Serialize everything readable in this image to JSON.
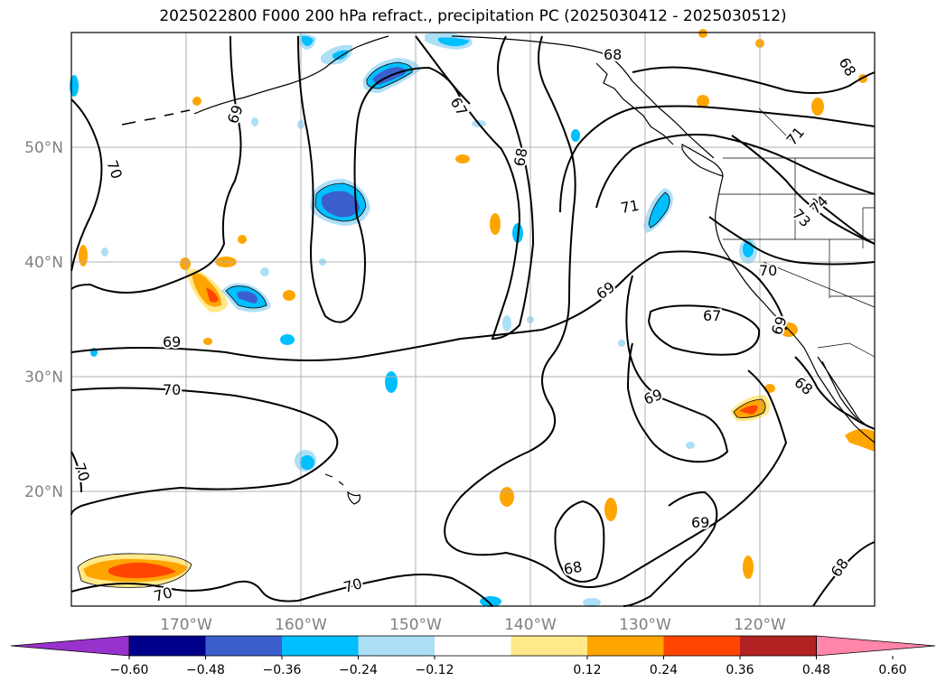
{
  "title": "2025022800 F000 200 hPa refract., precipitation PC (2025030412 - 2025030512)",
  "longitude_labels": [
    "170°W",
    "160°W",
    "150°W",
    "140°W",
    "130°W",
    "120°W"
  ],
  "latitude_labels": [
    "50°N",
    "40°N",
    "30°N",
    "20°N"
  ],
  "colorbar": {
    "ticks": [
      "−0.60",
      "−0.48",
      "−0.36",
      "−0.24",
      "−0.12",
      "0.12",
      "0.24",
      "0.36",
      "0.48",
      "0.60"
    ],
    "colors": [
      "#9932CC",
      "#00008B",
      "#3A5FCD",
      "#00BFFF",
      "#ADDFF7",
      "#FFFFFF",
      "#FFE98A",
      "#FFA500",
      "#FF4500",
      "#B22222",
      "#FF85A9"
    ]
  },
  "contour_labels": [
    "67",
    "68",
    "69",
    "70",
    "71",
    "73",
    "74",
    "68",
    "69",
    "70",
    "67",
    "69",
    "68",
    "69",
    "70",
    "70",
    "69",
    "68",
    "69",
    "67",
    "70",
    "71",
    "69",
    "68",
    "70",
    "68"
  ],
  "colors": {
    "grid": "#b0b0b0",
    "contour": "#000000",
    "coast": "#000000",
    "axis_label": "#808080"
  }
}
